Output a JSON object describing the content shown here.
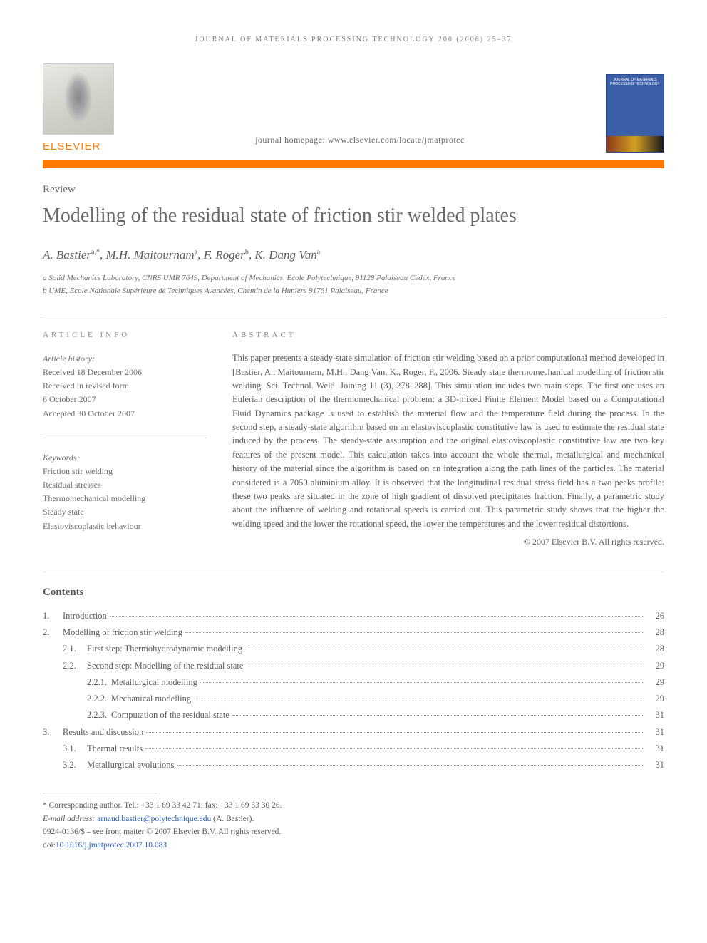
{
  "running_header": "JOURNAL OF MATERIALS PROCESSING TECHNOLOGY 200 (2008) 25–37",
  "publisher": {
    "name": "ELSEVIER"
  },
  "journal_cover": {
    "title": "JOURNAL OF MATERIALS PROCESSING TECHNOLOGY"
  },
  "homepage_line": "journal homepage: www.elsevier.com/locate/jmatprotec",
  "article_type": "Review",
  "title": "Modelling of the residual state of friction stir welded plates",
  "authors_html": "A. Bastier<sup>a,*</sup>, M.H. Maitournam<sup>a</sup>, F. Roger<sup>b</sup>, K. Dang Van<sup>a</sup>",
  "affiliations": [
    "a Solid Mechanics Laboratory, CNRS UMR 7649, Department of Mechanics, École Polytechnique, 91128 Palaiseau Cedex, France",
    "b UME, École Nationale Supérieure de Techniques Avancées, Chemin de la Hunière 91761 Palaiseau, France"
  ],
  "info": {
    "heading": "ARTICLE INFO",
    "history_label": "Article history:",
    "history": [
      "Received 18 December 2006",
      "Received in revised form",
      "6 October 2007",
      "Accepted 30 October 2007"
    ],
    "keywords_label": "Keywords:",
    "keywords": [
      "Friction stir welding",
      "Residual stresses",
      "Thermomechanical modelling",
      "Steady state",
      "Elastoviscoplastic behaviour"
    ]
  },
  "abstract": {
    "heading": "ABSTRACT",
    "text": "This paper presents a steady-state simulation of friction stir welding based on a prior computational method developed in [Bastier, A., Maitournam, M.H., Dang Van, K., Roger, F., 2006. Steady state thermomechanical modelling of friction stir welding. Sci. Technol. Weld. Joining 11 (3), 278–288]. This simulation includes two main steps. The first one uses an Eulerian description of the thermomechanical problem: a 3D-mixed Finite Element Model based on a Computational Fluid Dynamics package is used to establish the material flow and the temperature field during the process. In the second step, a steady-state algorithm based on an elastoviscoplastic constitutive law is used to estimate the residual state induced by the process. The steady-state assumption and the original elastoviscoplastic constitutive law are two key features of the present model. This calculation takes into account the whole thermal, metallurgical and mechanical history of the material since the algorithm is based on an integration along the path lines of the particles. The material considered is a 7050 aluminium alloy. It is observed that the longitudinal residual stress field has a two peaks profile: these two peaks are situated in the zone of high gradient of dissolved precipitates fraction. Finally, a parametric study about the influence of welding and rotational speeds is carried out. This parametric study shows that the higher the welding speed and the lower the rotational speed, the lower the temperatures and the lower residual distortions.",
    "copyright": "© 2007 Elsevier B.V. All rights reserved."
  },
  "contents": {
    "heading": "Contents",
    "items": [
      {
        "level": 0,
        "num": "1.",
        "label": "Introduction",
        "page": "26"
      },
      {
        "level": 0,
        "num": "2.",
        "label": "Modelling of friction stir welding",
        "page": "28"
      },
      {
        "level": 1,
        "num": "2.1.",
        "label": "First step: Thermohydrodynamic modelling",
        "page": "28"
      },
      {
        "level": 1,
        "num": "2.2.",
        "label": "Second step: Modelling of the residual state",
        "page": "29"
      },
      {
        "level": 2,
        "num": "2.2.1.",
        "label": "Metallurgical modelling",
        "page": "29"
      },
      {
        "level": 2,
        "num": "2.2.2.",
        "label": "Mechanical modelling",
        "page": "29"
      },
      {
        "level": 2,
        "num": "2.2.3.",
        "label": "Computation of the residual state",
        "page": "31"
      },
      {
        "level": 0,
        "num": "3.",
        "label": "Results and discussion",
        "page": "31"
      },
      {
        "level": 1,
        "num": "3.1.",
        "label": "Thermal results",
        "page": "31"
      },
      {
        "level": 1,
        "num": "3.2.",
        "label": "Metallurgical evolutions",
        "page": "31"
      }
    ]
  },
  "footnotes": {
    "corresponding": "* Corresponding author. Tel.: +33 1 69 33 42 71; fax: +33 1 69 33 30 26.",
    "email_label": "E-mail address:",
    "email": "arnaud.bastier@polytechnique.edu",
    "email_name": "(A. Bastier).",
    "copyright_line": "0924-0136/$ – see front matter © 2007 Elsevier B.V. All rights reserved.",
    "doi_label": "doi:",
    "doi": "10.1016/j.jmatprotec.2007.10.083"
  },
  "colors": {
    "accent_orange": "#ff7a00",
    "link_blue": "#2a5fb8",
    "cover_blue": "#3a5fa8",
    "text_gray": "#5a5a5a"
  }
}
